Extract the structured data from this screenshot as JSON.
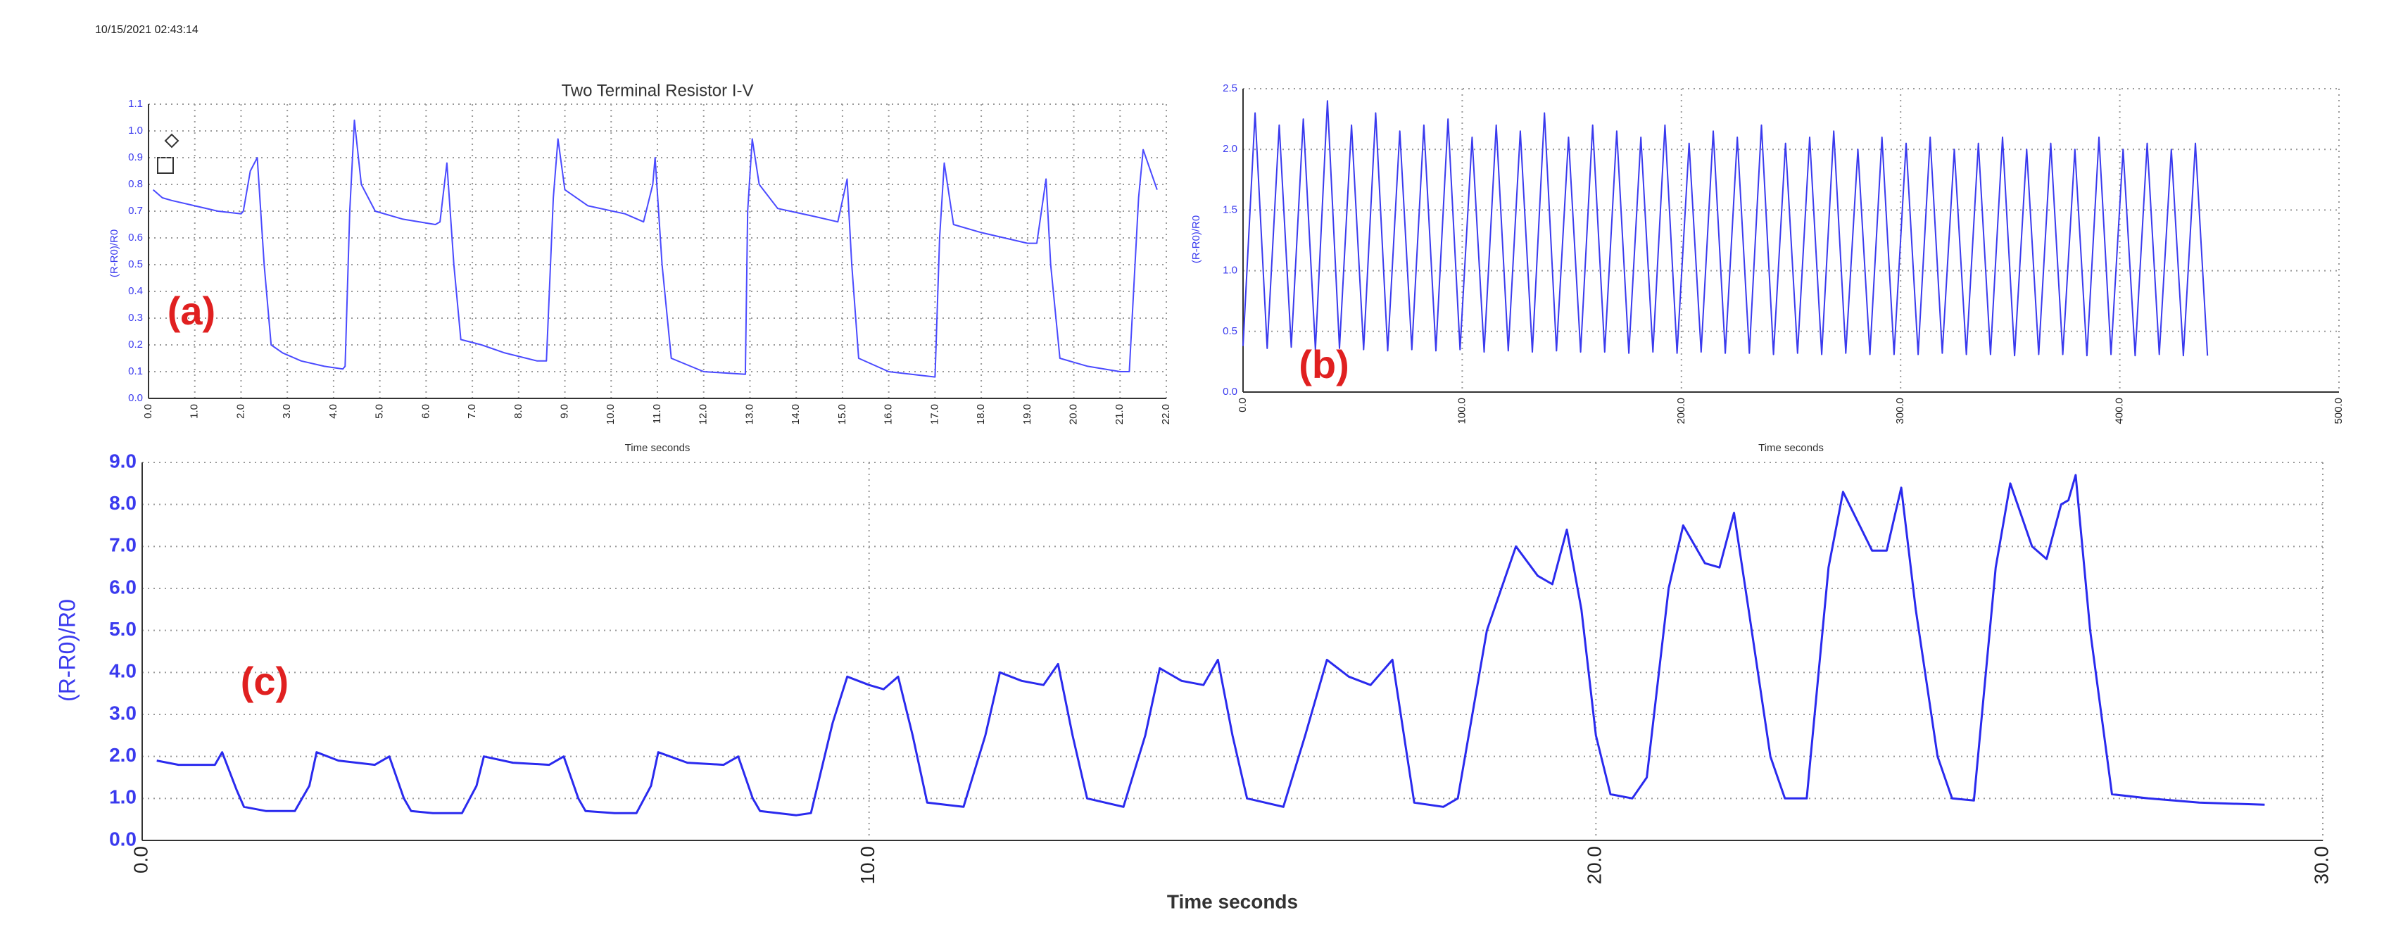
{
  "chart_data": [
    {
      "type": "line",
      "timestamp": "10/15/2021 02:43:14",
      "title": "Two Terminal Resistor I-V",
      "panel_label": "(a)",
      "xlabel": "Time seconds",
      "ylabel": "(R-R0)/R0",
      "color": "#4a4aff",
      "grid": true,
      "xlim": [
        0,
        22
      ],
      "ylim": [
        0,
        1.1
      ],
      "xticks": [
        {
          "value": 0,
          "label": "0.0"
        },
        {
          "value": 1,
          "label": "1.0"
        },
        {
          "value": 2,
          "label": "2.0"
        },
        {
          "value": 3,
          "label": "3.0"
        },
        {
          "value": 4,
          "label": "4.0"
        },
        {
          "value": 5,
          "label": "5.0"
        },
        {
          "value": 6,
          "label": "6.0"
        },
        {
          "value": 7,
          "label": "7.0"
        },
        {
          "value": 8,
          "label": "8.0"
        },
        {
          "value": 9,
          "label": "9.0"
        },
        {
          "value": 10,
          "label": "10.0"
        },
        {
          "value": 11,
          "label": "11.0"
        },
        {
          "value": 12,
          "label": "12.0"
        },
        {
          "value": 13,
          "label": "13.0"
        },
        {
          "value": 14,
          "label": "14.0"
        },
        {
          "value": 15,
          "label": "15.0"
        },
        {
          "value": 16,
          "label": "16.0"
        },
        {
          "value": 17,
          "label": "17.0"
        },
        {
          "value": 18,
          "label": "18.0"
        },
        {
          "value": 19,
          "label": "19.0"
        },
        {
          "value": 20,
          "label": "20.0"
        },
        {
          "value": 21,
          "label": "21.0"
        },
        {
          "value": 22,
          "label": "22.0"
        }
      ],
      "yticks": [
        {
          "value": 0,
          "label": "0.0"
        },
        0.1,
        0.2,
        0.3,
        0.4,
        0.5,
        0.6,
        0.7,
        0.8,
        0.9,
        {
          "value": 1,
          "label": "1.0"
        },
        1.1
      ],
      "x": [
        0.1,
        0.3,
        0.5,
        1.0,
        1.5,
        2.0,
        2.05,
        2.2,
        2.35,
        2.5,
        2.65,
        2.9,
        3.3,
        3.8,
        4.2,
        4.25,
        4.35,
        4.45,
        4.6,
        4.9,
        5.5,
        6.2,
        6.3,
        6.45,
        6.6,
        6.75,
        7.2,
        7.7,
        8.4,
        8.6,
        8.75,
        8.85,
        9.0,
        9.5,
        10.3,
        10.7,
        10.9,
        10.95,
        11.1,
        11.3,
        12.0,
        12.9,
        12.95,
        13.05,
        13.2,
        13.6,
        14.4,
        14.9,
        15.1,
        15.2,
        15.35,
        16.0,
        17.0,
        17.1,
        17.2,
        17.4,
        18.0,
        19.0,
        19.2,
        19.4,
        19.5,
        19.7,
        20.3,
        21.0,
        21.2,
        21.4,
        21.5,
        21.8
      ],
      "values": [
        0.78,
        0.75,
        0.74,
        0.72,
        0.7,
        0.69,
        0.7,
        0.85,
        0.9,
        0.5,
        0.2,
        0.17,
        0.14,
        0.12,
        0.11,
        0.12,
        0.7,
        1.04,
        0.8,
        0.7,
        0.67,
        0.65,
        0.66,
        0.88,
        0.5,
        0.22,
        0.2,
        0.17,
        0.14,
        0.14,
        0.75,
        0.97,
        0.78,
        0.72,
        0.69,
        0.66,
        0.8,
        0.9,
        0.5,
        0.15,
        0.1,
        0.09,
        0.7,
        0.97,
        0.8,
        0.71,
        0.68,
        0.66,
        0.82,
        0.5,
        0.15,
        0.1,
        0.08,
        0.6,
        0.88,
        0.65,
        0.62,
        0.58,
        0.58,
        0.82,
        0.5,
        0.15,
        0.12,
        0.1,
        0.1,
        0.75,
        0.93,
        0.78
      ]
    },
    {
      "type": "line",
      "panel_label": "(b)",
      "xlabel": "Time seconds",
      "ylabel": "(R-R0)/R0",
      "color": "#3a3aee",
      "grid": true,
      "xlim": [
        0,
        500
      ],
      "ylim": [
        0,
        2.5
      ],
      "xticks": [
        {
          "value": 0,
          "label": "0.0"
        },
        {
          "value": 100,
          "label": "100.0"
        },
        {
          "value": 200,
          "label": "200.0"
        },
        {
          "value": 300,
          "label": "300.0"
        },
        {
          "value": 400,
          "label": "400.0"
        },
        {
          "value": 500,
          "label": "500.0"
        }
      ],
      "yticks": [
        {
          "value": 0,
          "label": "0.0"
        },
        0.5,
        {
          "value": 1,
          "label": "1.0"
        },
        1.5,
        {
          "value": 2,
          "label": "2.0"
        },
        2.5
      ],
      "x": [
        0,
        5.5,
        11,
        16.5,
        22,
        27.5,
        33,
        38.5,
        44,
        49.5,
        55,
        60.5,
        66,
        71.5,
        77,
        82.5,
        88,
        93.5,
        99,
        104.5,
        110,
        115.5,
        121,
        126.5,
        132,
        137.5,
        143,
        148.5,
        154,
        159.5,
        165,
        170.5,
        176,
        181.5,
        187,
        192.5,
        198,
        203.5,
        209,
        214.5,
        220,
        225.5,
        231,
        236.5,
        242,
        247.5,
        253,
        258.5,
        264,
        269.5,
        275,
        280.5,
        286,
        291.5,
        297,
        302.5,
        308,
        313.5,
        319,
        324.5,
        330,
        335.5,
        341,
        346.5,
        352,
        357.5,
        363,
        368.5,
        374,
        379.5,
        385,
        390.5,
        396,
        401.5,
        407,
        412.5,
        418,
        423.5,
        429,
        434.5,
        440
      ],
      "values": [
        0.38,
        2.3,
        0.36,
        2.2,
        0.37,
        2.25,
        0.35,
        2.4,
        0.36,
        2.2,
        0.35,
        2.3,
        0.34,
        2.15,
        0.35,
        2.2,
        0.34,
        2.25,
        0.35,
        2.1,
        0.33,
        2.2,
        0.34,
        2.15,
        0.33,
        2.3,
        0.34,
        2.1,
        0.33,
        2.2,
        0.33,
        2.15,
        0.32,
        2.1,
        0.33,
        2.2,
        0.32,
        2.05,
        0.33,
        2.15,
        0.32,
        2.1,
        0.32,
        2.2,
        0.31,
        2.05,
        0.32,
        2.1,
        0.31,
        2.15,
        0.32,
        2.0,
        0.31,
        2.1,
        0.31,
        2.05,
        0.31,
        2.1,
        0.32,
        2.0,
        0.31,
        2.05,
        0.31,
        2.1,
        0.3,
        2.0,
        0.31,
        2.05,
        0.31,
        2.0,
        0.3,
        2.1,
        0.31,
        2.0,
        0.3,
        2.05,
        0.31,
        2.0,
        0.3,
        2.05,
        0.3
      ]
    },
    {
      "type": "line",
      "panel_label": "(c)",
      "xlabel": "Time seconds",
      "ylabel": "(R-R0)/R0",
      "color": "#2a2aee",
      "grid": true,
      "xlim": [
        0,
        30
      ],
      "ylim": [
        0,
        9
      ],
      "xticks": [
        {
          "value": 0,
          "label": "0.0"
        },
        {
          "value": 10,
          "label": "10.0"
        },
        {
          "value": 20,
          "label": "20.0"
        },
        {
          "value": 30,
          "label": "30.0"
        }
      ],
      "yticks": [
        {
          "value": 0,
          "label": "0.0"
        },
        {
          "value": 1,
          "label": "1.0"
        },
        {
          "value": 2,
          "label": "2.0"
        },
        {
          "value": 3,
          "label": "3.0"
        },
        {
          "value": 4,
          "label": "4.0"
        },
        {
          "value": 5,
          "label": "5.0"
        },
        {
          "value": 6,
          "label": "6.0"
        },
        {
          "value": 7,
          "label": "7.0"
        },
        {
          "value": 8,
          "label": "8.0"
        },
        {
          "value": 9,
          "label": "9.0"
        }
      ],
      "x": [
        0.2,
        0.5,
        1.0,
        1.1,
        1.3,
        1.4,
        1.7,
        2.1,
        2.3,
        2.4,
        2.7,
        3.2,
        3.4,
        3.6,
        3.7,
        4.0,
        4.4,
        4.6,
        4.7,
        5.1,
        5.6,
        5.8,
        6.0,
        6.1,
        6.5,
        6.8,
        7.0,
        7.1,
        7.5,
        8.0,
        8.2,
        8.4,
        8.5,
        9.0,
        9.2,
        9.5,
        9.7,
        10.0,
        10.2,
        10.4,
        10.6,
        10.8,
        11.3,
        11.6,
        11.8,
        12.1,
        12.4,
        12.6,
        12.8,
        13.0,
        13.5,
        13.8,
        14.0,
        14.3,
        14.6,
        14.8,
        15.0,
        15.2,
        15.7,
        16.0,
        16.3,
        16.6,
        16.9,
        17.2,
        17.5,
        17.9,
        18.1,
        18.5,
        18.9,
        19.2,
        19.4,
        19.6,
        19.8,
        20.0,
        20.2,
        20.5,
        20.7,
        21.0,
        21.2,
        21.5,
        21.7,
        21.9,
        22.1,
        22.4,
        22.6,
        22.9,
        23.2,
        23.4,
        23.8,
        24.0,
        24.2,
        24.4,
        24.7,
        24.9,
        25.2,
        25.5,
        25.7,
        26.0,
        26.2,
        26.4,
        26.5,
        26.6,
        26.8,
        27.1,
        27.6,
        28.3,
        29.2
      ],
      "values": [
        1.9,
        1.8,
        1.8,
        2.1,
        1.2,
        0.8,
        0.7,
        0.7,
        1.3,
        2.1,
        1.9,
        1.8,
        2.0,
        1.0,
        0.7,
        0.65,
        0.65,
        1.3,
        2.0,
        1.85,
        1.8,
        2.0,
        1.0,
        0.7,
        0.65,
        0.65,
        1.3,
        2.1,
        1.85,
        1.8,
        2.0,
        1.0,
        0.7,
        0.6,
        0.65,
        2.8,
        3.9,
        3.7,
        3.6,
        3.9,
        2.5,
        0.9,
        0.8,
        2.5,
        4.0,
        3.8,
        3.7,
        4.2,
        2.5,
        1.0,
        0.8,
        2.5,
        4.1,
        3.8,
        3.7,
        4.3,
        2.5,
        1.0,
        0.8,
        2.5,
        4.3,
        3.9,
        3.7,
        4.3,
        0.9,
        0.8,
        1.0,
        5.0,
        7.0,
        6.3,
        6.1,
        7.4,
        5.5,
        2.5,
        1.1,
        1.0,
        1.5,
        6.0,
        7.5,
        6.6,
        6.5,
        7.8,
        5.5,
        2.0,
        1.0,
        1.0,
        6.5,
        8.3,
        6.9,
        6.9,
        8.4,
        5.5,
        2.0,
        1.0,
        0.95,
        6.5,
        8.5,
        7.0,
        6.7,
        8.0,
        8.1,
        8.7,
        5.0,
        1.1,
        1.0,
        0.9,
        0.85
      ]
    }
  ]
}
